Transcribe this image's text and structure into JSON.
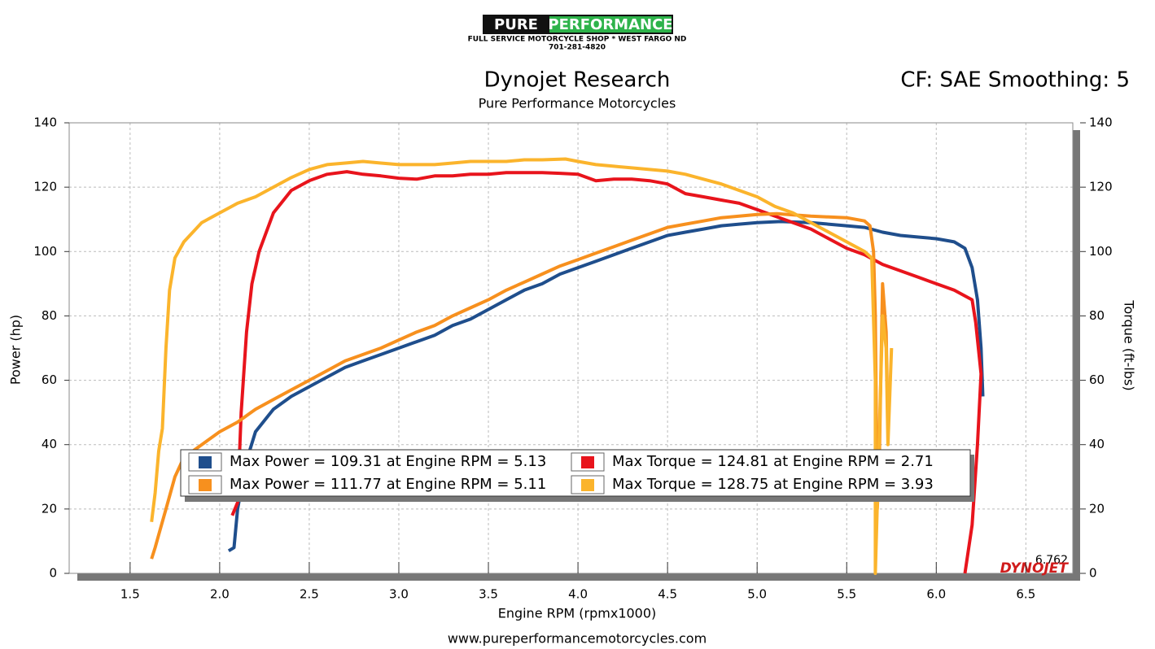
{
  "header": {
    "logo_left": "PURE",
    "logo_right": "PERFORMANCE",
    "shop": "FULL SERVICE MOTORCYCLE SHOP * WEST FARGO ND",
    "phone": "701-281-4820"
  },
  "footer": "www.pureperformancemotorcycles.com",
  "chart_data": {
    "type": "line",
    "title": "Dynojet Research",
    "subtitle": "Pure Performance Motorcycles",
    "settings_label": "CF: SAE Smoothing: 5",
    "x_label": "Engine RPM (rpmx1000)",
    "y_label": "Power (hp)",
    "y2_label": "Torque (ft-lbs)",
    "end_label": "6.762",
    "brand": "DYNOJET",
    "grid": true,
    "xlim": [
      1.16,
      6.762
    ],
    "ylim": [
      0,
      140
    ],
    "y2lim": [
      0,
      140
    ],
    "xticks": [
      1.5,
      {
        "value": 2,
        "label": "2.0"
      },
      2.5,
      {
        "value": 3,
        "label": "3.0"
      },
      3.5,
      {
        "value": 4,
        "label": "4.0"
      },
      4.5,
      {
        "value": 5,
        "label": "5.0"
      },
      5.5,
      {
        "value": 6,
        "label": "6.0"
      },
      6.5
    ],
    "yticks": [
      0,
      20,
      40,
      60,
      80,
      100,
      120,
      140
    ],
    "y2ticks": [
      0,
      20,
      40,
      60,
      80,
      100,
      120,
      140
    ],
    "series": [
      {
        "name": "Max Power = 109.31 at Engine RPM = 5.13",
        "color": "#1f4e8c",
        "x": [
          2.05,
          2.08,
          2.1,
          2.15,
          2.2,
          2.3,
          2.4,
          2.5,
          2.6,
          2.7,
          2.8,
          2.9,
          3.0,
          3.1,
          3.2,
          3.3,
          3.4,
          3.5,
          3.6,
          3.7,
          3.8,
          3.9,
          4.0,
          4.1,
          4.2,
          4.3,
          4.4,
          4.5,
          4.6,
          4.7,
          4.8,
          4.9,
          5.0,
          5.13,
          5.3,
          5.5,
          5.6,
          5.7,
          5.8,
          5.9,
          6.0,
          6.1,
          6.16,
          6.2,
          6.23,
          6.25,
          6.26
        ],
        "values": [
          7,
          8,
          20,
          35,
          44,
          51,
          55,
          58,
          61,
          64,
          66,
          68,
          70,
          72,
          74,
          77,
          79,
          82,
          85,
          88,
          90,
          93,
          95,
          97,
          99,
          101,
          103,
          105,
          106,
          107,
          108,
          108.5,
          109,
          109.31,
          109,
          108,
          107.5,
          106,
          105,
          104.5,
          104,
          103,
          101,
          95,
          85,
          70,
          55
        ]
      },
      {
        "name": "Max Torque = 124.81 at Engine RPM = 2.71",
        "color": "#e8141c",
        "axis": "y2",
        "x": [
          2.07,
          2.1,
          2.12,
          2.15,
          2.18,
          2.22,
          2.3,
          2.4,
          2.5,
          2.6,
          2.71,
          2.8,
          2.9,
          3.0,
          3.1,
          3.2,
          3.3,
          3.4,
          3.5,
          3.6,
          3.7,
          3.8,
          3.9,
          4.0,
          4.1,
          4.2,
          4.3,
          4.4,
          4.5,
          4.6,
          4.7,
          4.8,
          4.9,
          5.0,
          5.1,
          5.2,
          5.3,
          5.4,
          5.5,
          5.6,
          5.7,
          5.8,
          5.9,
          6.0,
          6.1,
          6.2,
          6.22,
          6.25,
          6.23,
          6.2,
          6.16
        ],
        "values": [
          18,
          22,
          50,
          75,
          90,
          100,
          112,
          119,
          122,
          124,
          124.81,
          124,
          123.5,
          122.8,
          122.5,
          123.5,
          123.5,
          124,
          124,
          124.5,
          124.5,
          124.5,
          124.3,
          124,
          122,
          122.5,
          122.5,
          122,
          121,
          118,
          117,
          116,
          115,
          113,
          111,
          109,
          107,
          104,
          101,
          99,
          96,
          94,
          92,
          90,
          88,
          85,
          78,
          62,
          40,
          15,
          0
        ]
      },
      {
        "name": "Max Power = 111.77 at Engine RPM = 5.11",
        "color": "#f7901e",
        "x": [
          1.62,
          1.64,
          1.66,
          1.7,
          1.75,
          1.8,
          1.9,
          2.0,
          2.1,
          2.2,
          2.3,
          2.4,
          2.5,
          2.6,
          2.7,
          2.8,
          2.9,
          3.0,
          3.1,
          3.2,
          3.3,
          3.4,
          3.5,
          3.6,
          3.7,
          3.8,
          3.9,
          4.0,
          4.1,
          4.2,
          4.3,
          4.4,
          4.5,
          4.6,
          4.7,
          4.8,
          4.9,
          5.0,
          5.11,
          5.3,
          5.5,
          5.6,
          5.63,
          5.65,
          5.66,
          5.67,
          5.68,
          5.7,
          5.72,
          5.73
        ],
        "values": [
          4.5,
          8,
          12,
          20,
          30,
          36,
          40,
          44,
          47,
          51,
          54,
          57,
          60,
          63,
          66,
          68,
          70,
          72.5,
          75,
          77,
          80,
          82.5,
          85,
          88,
          90.5,
          93,
          95.5,
          97.5,
          99.5,
          101.5,
          103.5,
          105.5,
          107.5,
          108.5,
          109.5,
          110.5,
          111,
          111.5,
          111.77,
          111,
          110.5,
          109.5,
          108,
          100,
          80,
          20,
          30,
          90,
          75,
          45
        ]
      },
      {
        "name": "Max Torque = 128.75 at Engine RPM = 3.93",
        "color": "#fbb42c",
        "axis": "y2",
        "x": [
          1.62,
          1.64,
          1.66,
          1.68,
          1.7,
          1.72,
          1.75,
          1.8,
          1.9,
          2.0,
          2.1,
          2.2,
          2.3,
          2.4,
          2.5,
          2.6,
          2.7,
          2.8,
          2.9,
          3.0,
          3.1,
          3.2,
          3.3,
          3.4,
          3.5,
          3.6,
          3.7,
          3.8,
          3.93,
          4.0,
          4.1,
          4.2,
          4.3,
          4.4,
          4.5,
          4.6,
          4.7,
          4.8,
          4.9,
          5.0,
          5.1,
          5.2,
          5.3,
          5.4,
          5.5,
          5.6,
          5.64,
          5.66,
          5.66,
          5.68,
          5.7,
          5.72,
          5.73,
          5.75
        ],
        "values": [
          16,
          25,
          38,
          45,
          70,
          88,
          98,
          103,
          109,
          112,
          115,
          117,
          120,
          123,
          125.5,
          127,
          127.5,
          128,
          127.5,
          127,
          127,
          127,
          127.5,
          128,
          128,
          128,
          128.5,
          128.5,
          128.75,
          128,
          127,
          126.5,
          126,
          125.5,
          125,
          124,
          122.5,
          121,
          119,
          117,
          114,
          112,
          109,
          106,
          103,
          100,
          98,
          60,
          0,
          40,
          80,
          70,
          40,
          70
        ]
      }
    ]
  }
}
